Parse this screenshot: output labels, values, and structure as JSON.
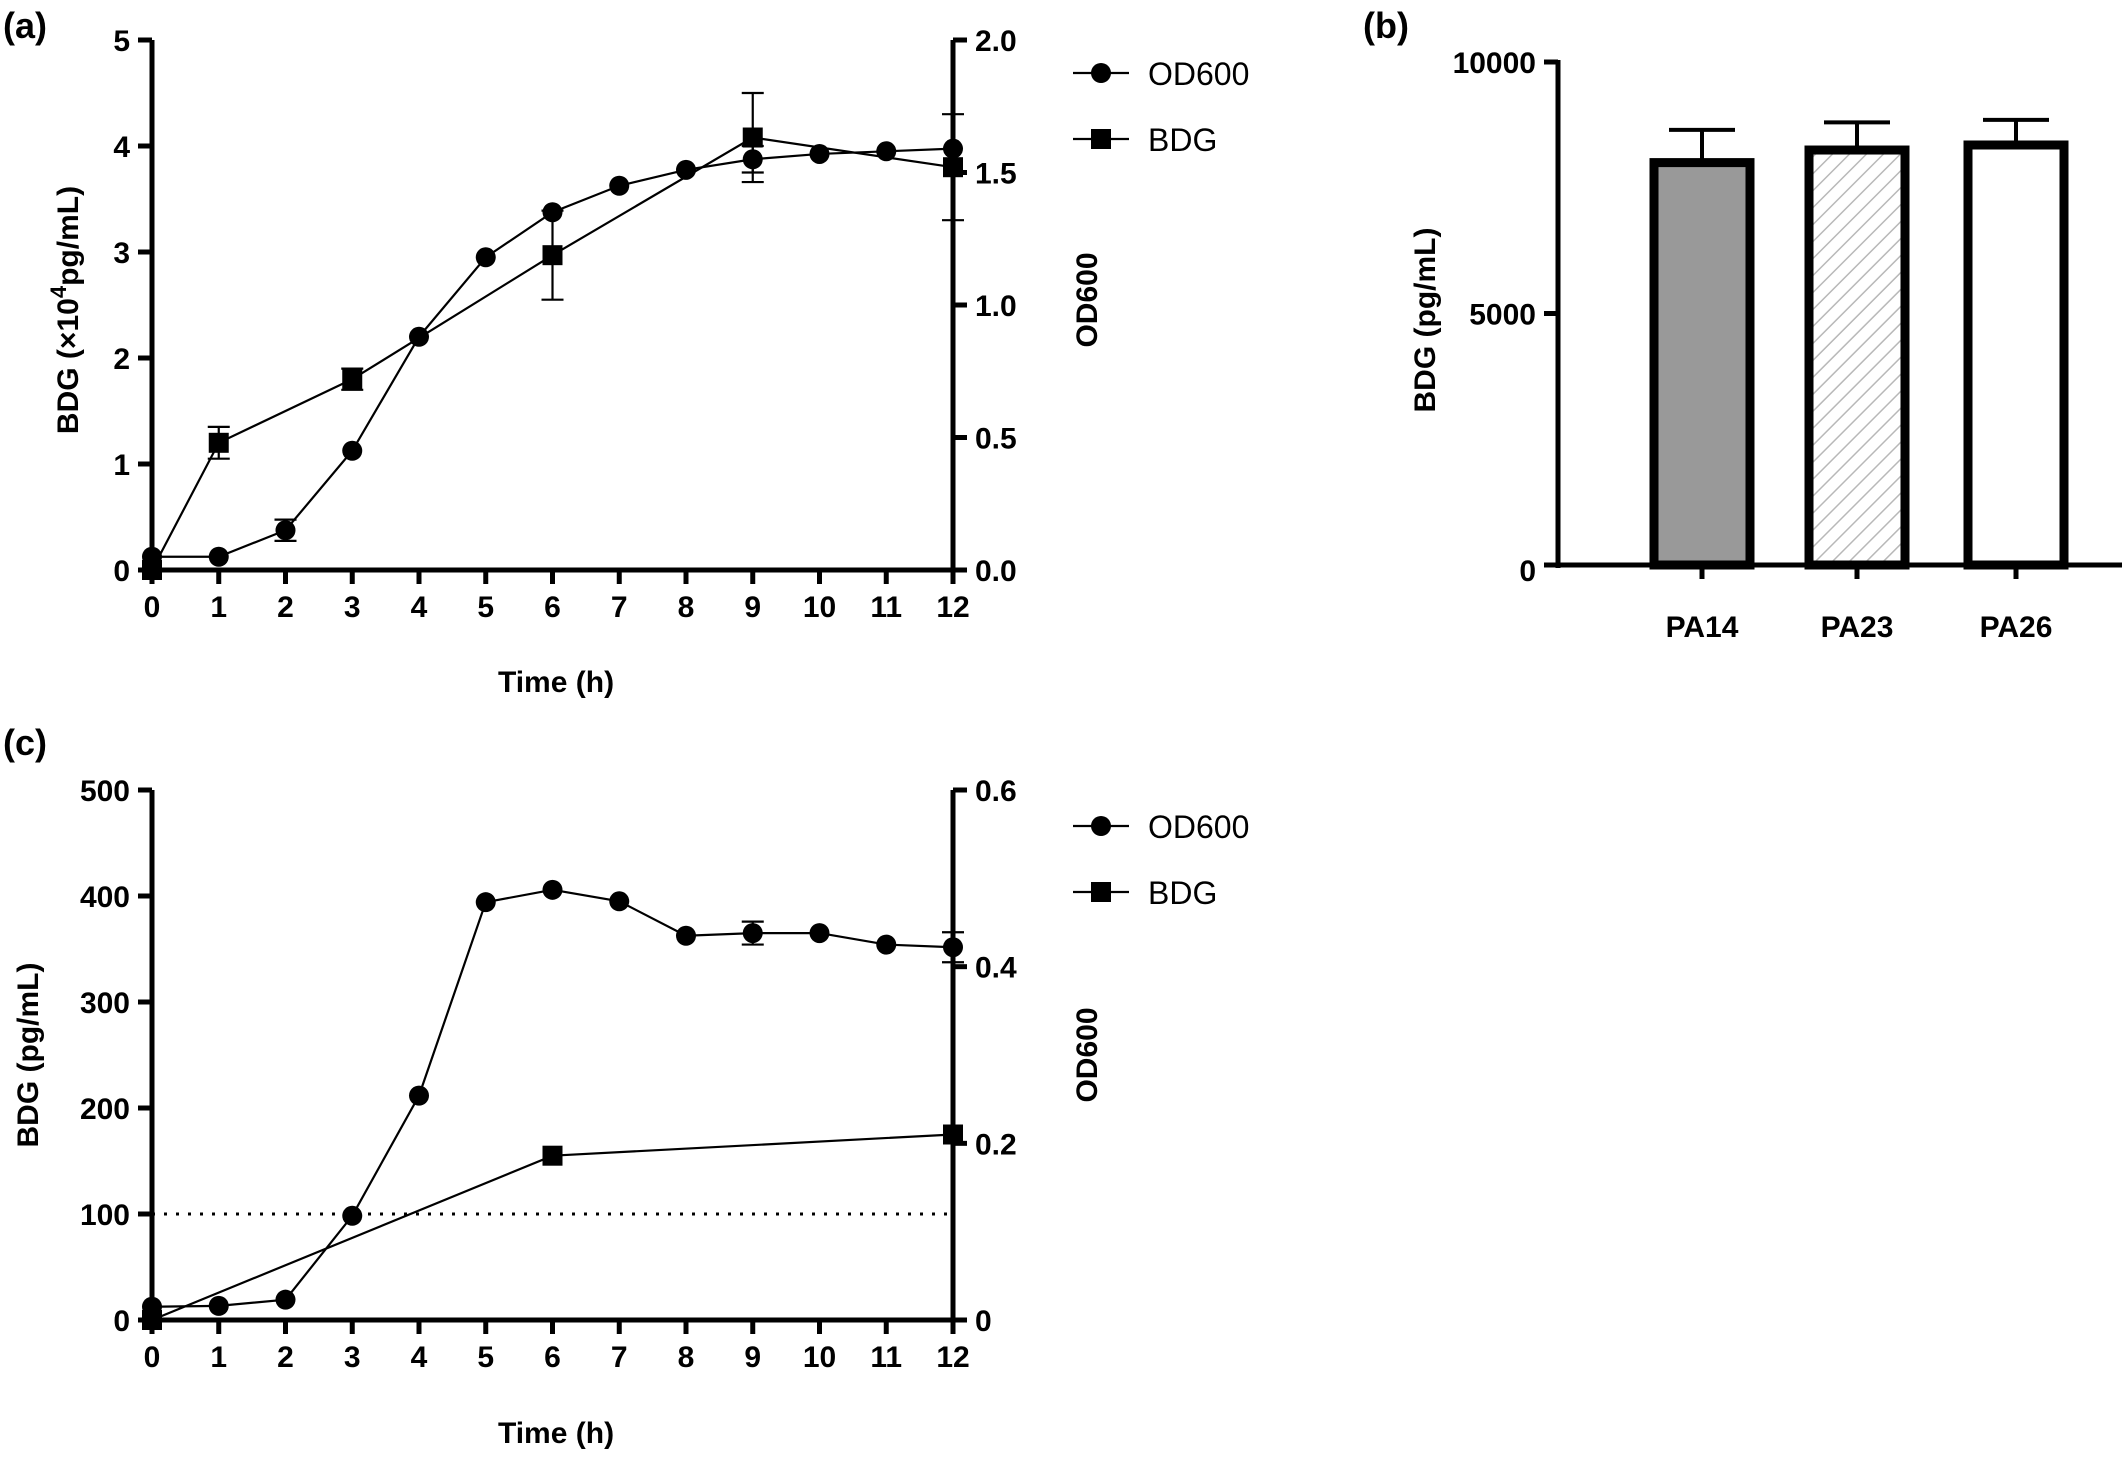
{
  "figure": {
    "panels": [
      {
        "label": "(a)"
      },
      {
        "label": "(b)"
      },
      {
        "label": "(c)"
      }
    ]
  },
  "chart_data": [
    {
      "panel": "(a)",
      "type": "line",
      "xlabel": "Time (h)",
      "ylabel": "BDG (×10⁴pg/mL)",
      "ylabel_parts": {
        "main": "BDG  (×10",
        "sup": "4",
        "tail": "pg/mL)"
      },
      "y2label": "OD600",
      "x_ticks": [
        0,
        1,
        2,
        3,
        4,
        5,
        6,
        7,
        8,
        9,
        10,
        11,
        12
      ],
      "xlim": [
        0,
        12
      ],
      "ylim": [
        0,
        5
      ],
      "y_ticks": [
        0,
        1,
        2,
        3,
        4,
        5
      ],
      "y2lim": [
        0,
        2.0
      ],
      "y2_ticks": [
        "0.0",
        "0.5",
        "1.0",
        "1.5",
        "2.0"
      ],
      "legend": {
        "position": "right-top",
        "entries": [
          {
            "name": "OD600",
            "marker": "circle"
          },
          {
            "name": "BDG",
            "marker": "square"
          }
        ]
      },
      "series": [
        {
          "name": "OD600",
          "axis": "right",
          "marker": "circle",
          "x": [
            0,
            1,
            2,
            3,
            4,
            5,
            6,
            7,
            8,
            9,
            10,
            11,
            12
          ],
          "y": [
            0.05,
            0.05,
            0.15,
            0.45,
            0.88,
            1.18,
            1.35,
            1.45,
            1.51,
            1.55,
            1.57,
            1.58,
            1.59
          ],
          "err": [
            0,
            0,
            0.04,
            0,
            0,
            0,
            0,
            0,
            0,
            0.05,
            0,
            0,
            0
          ]
        },
        {
          "name": "BDG",
          "axis": "left",
          "marker": "square",
          "x": [
            0,
            1,
            3,
            6,
            9,
            12
          ],
          "y": [
            0.0,
            1.2,
            1.8,
            2.97,
            4.08,
            3.8
          ],
          "err": [
            0,
            0.15,
            0.1,
            0.42,
            0.42,
            0.5
          ]
        }
      ]
    },
    {
      "panel": "(b)",
      "type": "bar",
      "ylabel": "BDG  (pg/mL)",
      "categories": [
        "PA14",
        "PA23",
        "PA26"
      ],
      "values": [
        8000,
        8250,
        8350
      ],
      "errors": [
        650,
        550,
        500
      ],
      "fills": [
        "#999999",
        "hatch",
        "#ffffff"
      ],
      "ylim": [
        0,
        10000
      ],
      "y_ticks": [
        "0",
        "5000",
        "10000"
      ]
    },
    {
      "panel": "(c)",
      "type": "line",
      "xlabel": "Time (h)",
      "ylabel": "BDG  (pg/mL)",
      "y2label": "OD600",
      "x_ticks": [
        0,
        1,
        2,
        3,
        4,
        5,
        6,
        7,
        8,
        9,
        10,
        11,
        12
      ],
      "xlim": [
        0,
        12
      ],
      "ylim": [
        0,
        500
      ],
      "y_ticks": [
        0,
        100,
        200,
        300,
        400,
        500
      ],
      "y2lim": [
        0,
        0.6
      ],
      "y2_ticks": [
        "0",
        "0.2",
        "0.4",
        "0.6"
      ],
      "reference_line": {
        "axis": "left",
        "y": 100,
        "style": "dotted"
      },
      "legend": {
        "position": "right-top",
        "entries": [
          {
            "name": "OD600",
            "marker": "circle"
          },
          {
            "name": "BDG",
            "marker": "square"
          }
        ]
      },
      "series": [
        {
          "name": "OD600",
          "axis": "right",
          "marker": "circle",
          "x": [
            0,
            1,
            2,
            3,
            4,
            5,
            6,
            7,
            8,
            9,
            10,
            11,
            12
          ],
          "y": [
            0.015,
            0.016,
            0.023,
            0.118,
            0.254,
            0.473,
            0.487,
            0.474,
            0.435,
            0.438,
            0.438,
            0.425,
            0.422
          ],
          "err": [
            0,
            0,
            0,
            0,
            0,
            0,
            0,
            0,
            0,
            0.013,
            0,
            0,
            0.017
          ]
        },
        {
          "name": "BDG",
          "axis": "left",
          "marker": "square",
          "x": [
            0,
            6,
            12
          ],
          "y": [
            0,
            155,
            175
          ],
          "err": [
            0,
            0,
            0
          ]
        }
      ]
    }
  ]
}
